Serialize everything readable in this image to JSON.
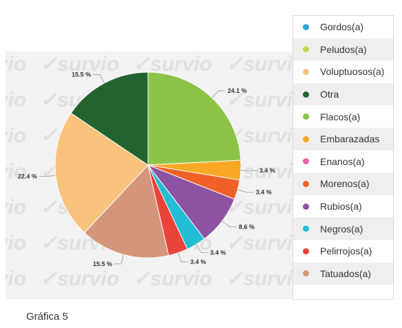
{
  "caption": "Gráfica 5",
  "watermark_text": "survio",
  "chart_data": {
    "type": "pie",
    "legend_position": "right",
    "slices": [
      {
        "label": "Gordos(a)",
        "value": 0,
        "color": "#2aa7dc"
      },
      {
        "label": "Peludos(a)",
        "value": 0,
        "color": "#c8d64a"
      },
      {
        "label": "Voluptuosos(a)",
        "value": 22.4,
        "color": "#f9c37e"
      },
      {
        "label": "Otra",
        "value": 15.5,
        "color": "#236330"
      },
      {
        "label": "Flacos(a)",
        "value": 24.1,
        "color": "#8dc447"
      },
      {
        "label": "Embarazadas",
        "value": 3.4,
        "color": "#f9a825"
      },
      {
        "label": "Enanos(a)",
        "value": 0,
        "color": "#e86aa2"
      },
      {
        "label": "Morenos(a)",
        "value": 3.4,
        "color": "#ef6127"
      },
      {
        "label": "Rubios(a)",
        "value": 8.6,
        "color": "#8d52a1"
      },
      {
        "label": "Negros(a)",
        "value": 3.4,
        "color": "#22bcd4"
      },
      {
        "label": "Pelirrojos(a)",
        "value": 3.4,
        "color": "#e9443a"
      },
      {
        "label": "Tatuados(a)",
        "value": 15.5,
        "color": "#d4967a"
      }
    ],
    "draw_order": [
      "Flacos(a)",
      "Embarazadas",
      "Morenos(a)",
      "Rubios(a)",
      "Negros(a)",
      "Pelirrojos(a)",
      "Tatuados(a)",
      "Voluptuosos(a)",
      "Otra"
    ],
    "value_format": "{v} %"
  }
}
